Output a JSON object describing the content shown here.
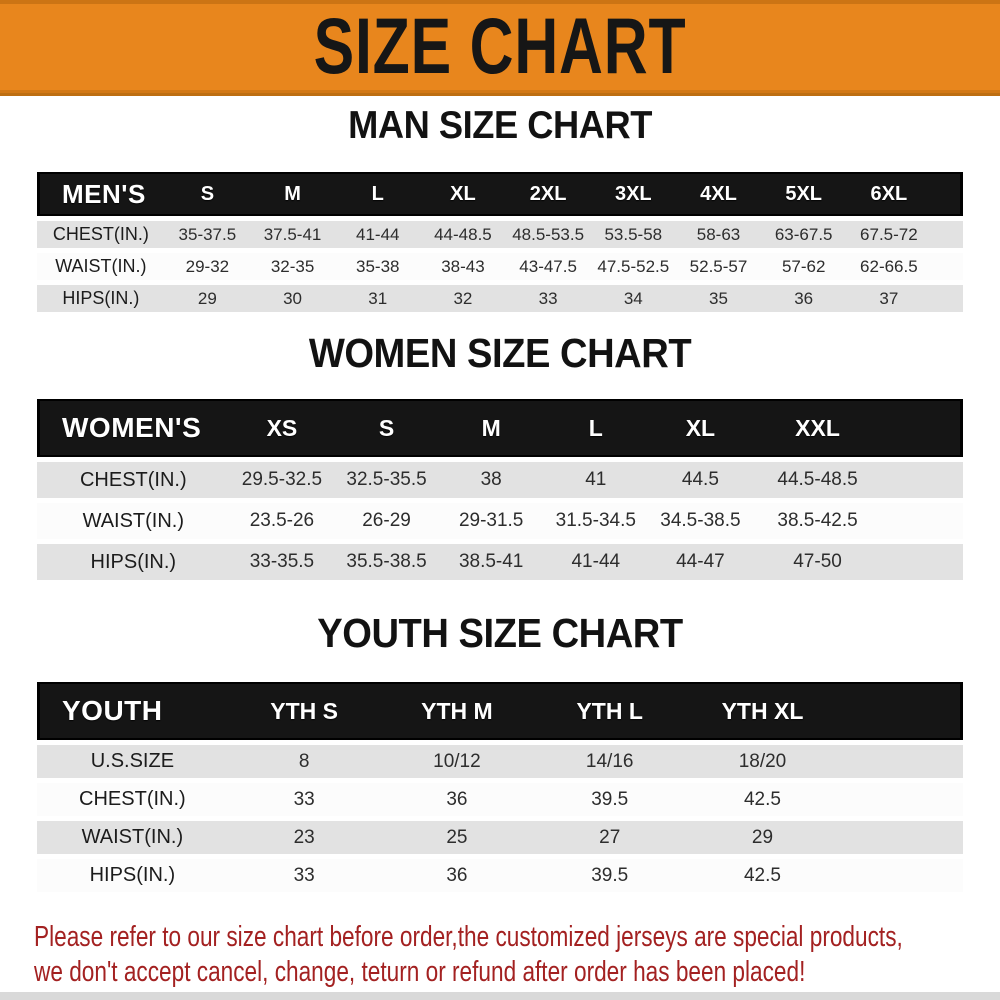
{
  "banner": {
    "title": "SIZE CHART",
    "bg_color": "#E8861D",
    "text_color": "#161616"
  },
  "sections": [
    {
      "heading": "MAN SIZE CHART",
      "header_label": "MEN'S",
      "columns": [
        "S",
        "M",
        "L",
        "XL",
        "2XL",
        "3XL",
        "4XL",
        "5XL",
        "6XL"
      ],
      "rows": [
        {
          "label": "CHEST(IN.)",
          "values": [
            "35-37.5",
            "37.5-41",
            "41-44",
            "44-48.5",
            "48.5-53.5",
            "53.5-58",
            "58-63",
            "63-67.5",
            "67.5-72"
          ]
        },
        {
          "label": "WAIST(IN.)",
          "values": [
            "29-32",
            "32-35",
            "35-38",
            "38-43",
            "43-47.5",
            "47.5-52.5",
            "52.5-57",
            "57-62",
            "62-66.5"
          ]
        },
        {
          "label": "HIPS(IN.)",
          "values": [
            "29",
            "30",
            "31",
            "32",
            "33",
            "34",
            "35",
            "36",
            "37"
          ]
        }
      ]
    },
    {
      "heading": "WOMEN SIZE CHART",
      "header_label": "WOMEN'S",
      "columns": [
        "XS",
        "S",
        "M",
        "L",
        "XL",
        "XXL"
      ],
      "rows": [
        {
          "label": "CHEST(IN.)",
          "values": [
            "29.5-32.5",
            "32.5-35.5",
            "38",
            "41",
            "44.5",
            "44.5-48.5"
          ]
        },
        {
          "label": "WAIST(IN.)",
          "values": [
            "23.5-26",
            "26-29",
            "29-31.5",
            "31.5-34.5",
            "34.5-38.5",
            "38.5-42.5"
          ]
        },
        {
          "label": "HIPS(IN.)",
          "values": [
            "33-35.5",
            "35.5-38.5",
            "38.5-41",
            "41-44",
            "44-47",
            "47-50"
          ]
        }
      ]
    },
    {
      "heading": "YOUTH SIZE CHART",
      "header_label": "YOUTH",
      "columns": [
        "YTH S",
        "YTH M",
        "YTH L",
        "YTH XL"
      ],
      "rows": [
        {
          "label": "U.S.SIZE",
          "values": [
            "8",
            "10/12",
            "14/16",
            "18/20"
          ]
        },
        {
          "label": "CHEST(IN.)",
          "values": [
            "33",
            "36",
            "39.5",
            "42.5"
          ]
        },
        {
          "label": "WAIST(IN.)",
          "values": [
            "23",
            "25",
            "27",
            "29"
          ]
        },
        {
          "label": "HIPS(IN.)",
          "values": [
            "33",
            "36",
            "39.5",
            "42.5"
          ]
        }
      ]
    }
  ],
  "disclaimer": {
    "line1": "Please refer to our size chart before order,the customized jerseys are special products,",
    "line2": "we don't accept cancel, change, teturn or refund after order has been placed!",
    "text_color": "#A32121"
  },
  "colors": {
    "table_header_bg": "#151515",
    "table_stripe": "#E2E2E2"
  }
}
